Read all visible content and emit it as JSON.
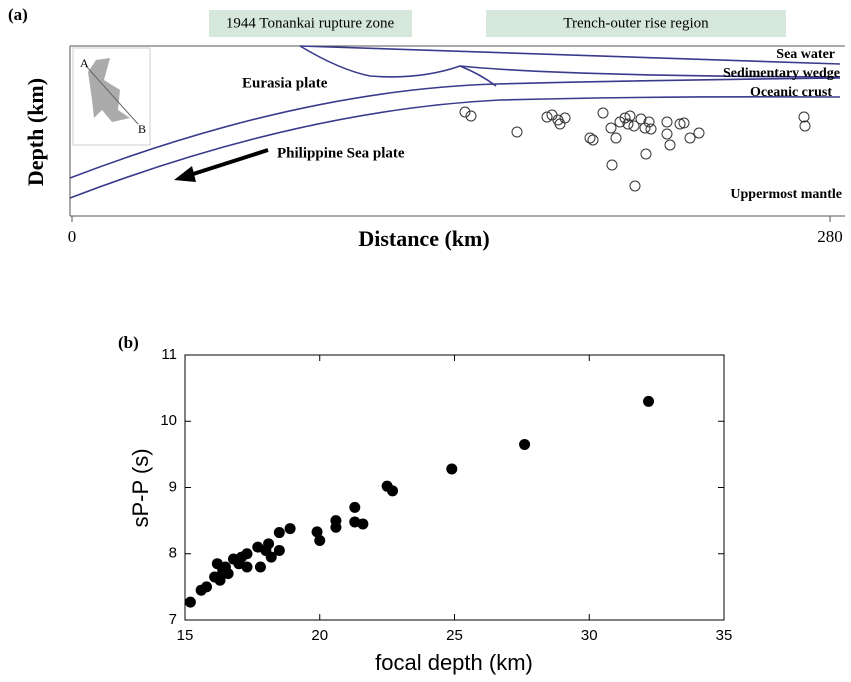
{
  "chart_data": [
    {
      "type": "section",
      "panel_label": "(a)",
      "zones": [
        "1944 Tonankai rupture zone",
        "Trench-outer rise region"
      ],
      "layer_labels": [
        "Sea water",
        "Sedimentary wedge",
        "Oceanic crust",
        "Uppermost mantle"
      ],
      "plate_labels": [
        "Eurasia plate",
        "Philippine Sea plate"
      ],
      "inset_labels": [
        "A",
        "B"
      ],
      "xlabel": "Distance (km)",
      "ylabel": "Depth (km)",
      "xlim": [
        0,
        280
      ],
      "xticks": [
        0,
        280
      ]
    },
    {
      "type": "scatter",
      "panel_label": "(b)",
      "xlabel": "focal depth (km)",
      "ylabel": "sP-P (s)",
      "color": "#000000",
      "x": [
        15.2,
        15.6,
        15.8,
        16.1,
        16.2,
        16.3,
        16.4,
        16.5,
        16.6,
        16.8,
        17.0,
        17.1,
        17.3,
        17.3,
        17.7,
        17.8,
        18.0,
        18.1,
        18.2,
        18.5,
        18.5,
        18.9,
        19.9,
        20.0,
        20.6,
        20.6,
        21.3,
        21.3,
        21.6,
        22.5,
        22.7,
        24.9,
        27.6,
        32.2
      ],
      "values": [
        7.27,
        7.45,
        7.5,
        7.65,
        7.85,
        7.6,
        7.75,
        7.8,
        7.7,
        7.92,
        7.85,
        7.95,
        8.0,
        7.8,
        8.1,
        7.8,
        8.05,
        8.15,
        7.95,
        8.05,
        8.32,
        8.38,
        8.33,
        8.2,
        8.5,
        8.4,
        8.7,
        8.48,
        8.45,
        9.02,
        8.95,
        9.28,
        9.65,
        10.3
      ],
      "xlim": [
        15,
        35
      ],
      "xticks": [
        15,
        20,
        25,
        30,
        35
      ],
      "ylim": [
        7,
        11
      ],
      "yticks": [
        7,
        8,
        9,
        10,
        11
      ]
    }
  ]
}
